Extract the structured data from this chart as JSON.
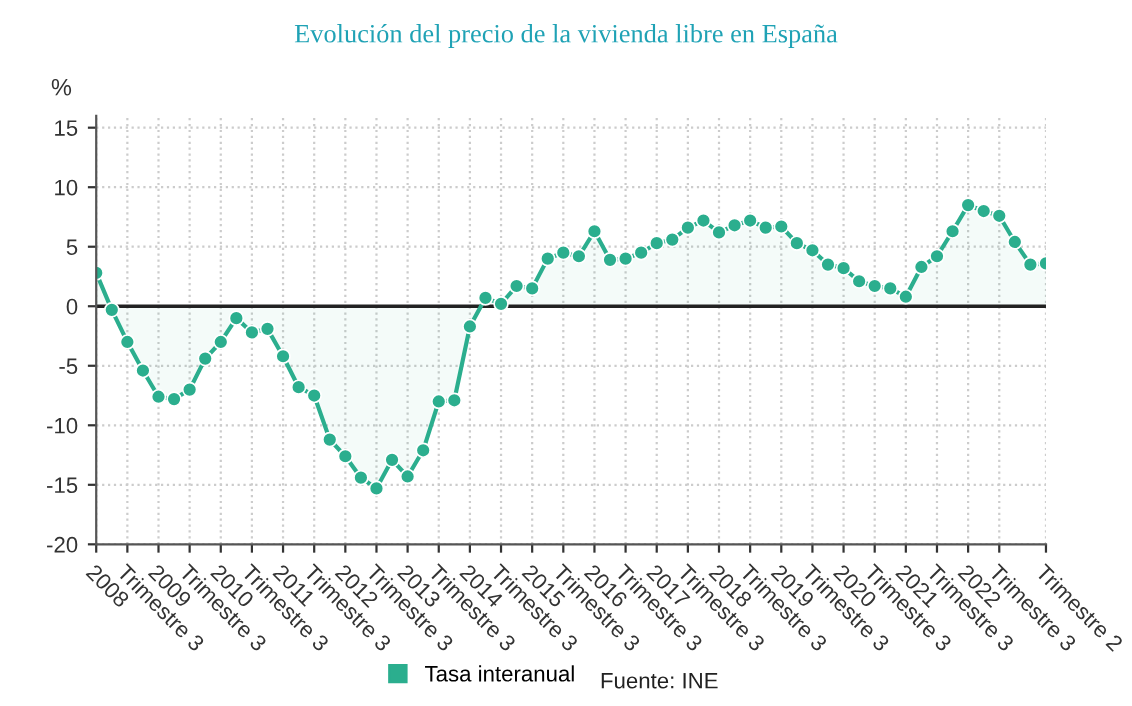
{
  "chart_data": {
    "type": "area",
    "title": "Evolución del precio de la vivienda libre en España",
    "ylabel": "%",
    "categories": [
      "2008",
      null,
      "Trimestre 3",
      null,
      "2009",
      null,
      "Trimestre 3",
      null,
      "2010",
      null,
      "Trimestre 3",
      null,
      "2011",
      null,
      "Trimestre 3",
      null,
      "2012",
      null,
      "Trimestre 3",
      null,
      "2013",
      null,
      "Trimestre 3",
      null,
      "2014",
      null,
      "Trimestre 3",
      null,
      "2015",
      null,
      "Trimestre 3",
      null,
      "2016",
      null,
      "Trimestre 3",
      null,
      "2017",
      null,
      "Trimestre 3",
      null,
      "2018",
      null,
      "Trimestre 3",
      null,
      "2019",
      null,
      "Trimestre 3",
      null,
      "2020",
      null,
      "Trimestre 3",
      null,
      "2021",
      null,
      "Trimestre 3",
      null,
      "2022",
      null,
      "Trimestre 3",
      null,
      null,
      "Trimestre 2"
    ],
    "series": [
      {
        "name": "Tasa interanual",
        "color": "#2bae8e",
        "values": [
          2.8,
          -0.3,
          -3.0,
          -5.4,
          -7.6,
          -7.8,
          -7.0,
          -4.4,
          -3.0,
          -1.0,
          -2.2,
          -1.9,
          -4.2,
          -6.8,
          -7.5,
          -11.2,
          -12.6,
          -14.4,
          -15.3,
          -12.9,
          -14.3,
          -12.1,
          -8.0,
          -7.9,
          -1.7,
          0.7,
          0.2,
          1.7,
          1.5,
          4.0,
          4.5,
          4.2,
          6.3,
          3.9,
          4.0,
          4.5,
          5.3,
          5.6,
          6.6,
          7.2,
          6.2,
          6.8,
          7.2,
          6.6,
          6.7,
          5.3,
          4.7,
          3.5,
          3.2,
          2.1,
          1.7,
          1.5,
          0.8,
          3.3,
          4.2,
          6.3,
          8.5,
          8.0,
          7.6,
          5.4,
          3.5,
          3.6
        ]
      }
    ],
    "ylim": [
      -20,
      16
    ],
    "yticks": [
      -20,
      -15,
      -10,
      -5,
      0,
      5,
      10,
      15
    ],
    "ref_lines": [
      {
        "axis": "y",
        "value": 0,
        "color": "#222222"
      }
    ],
    "grid": true,
    "legend": "bottom",
    "marker": "circle",
    "line_style": "solid",
    "annotations": [
      "Fuente: INE"
    ]
  }
}
